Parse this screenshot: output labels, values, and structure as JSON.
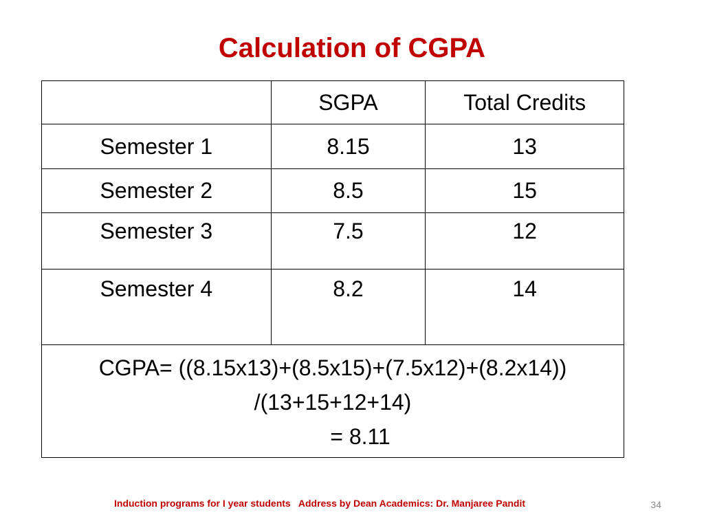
{
  "slide": {
    "title": "Calculation of CGPA",
    "footer": "Induction programs for I year students   Address by Dean Academics: Dr. Manjaree Pandit",
    "page_number": "34"
  },
  "table": {
    "headers": [
      "",
      "SGPA",
      "Total Credits"
    ],
    "rows": [
      {
        "semester": "Semester 1",
        "sgpa": "8.15",
        "credits": "13"
      },
      {
        "semester": "Semester 2",
        "sgpa": "8.5",
        "credits": "15"
      },
      {
        "semester": "Semester 3",
        "sgpa": "7.5",
        "credits": "12"
      },
      {
        "semester": "Semester 4",
        "sgpa": "8.2",
        "credits": "14"
      }
    ],
    "formula": {
      "line1": "CGPA= ((8.15x13)+(8.5x15)+(7.5x12)+(8.2x14))",
      "line2": "/(13+15+12+14)",
      "line3": "= 8.11"
    }
  },
  "colors": {
    "title": "#c00000",
    "footer": "#c00000",
    "page_number": "#888888"
  }
}
